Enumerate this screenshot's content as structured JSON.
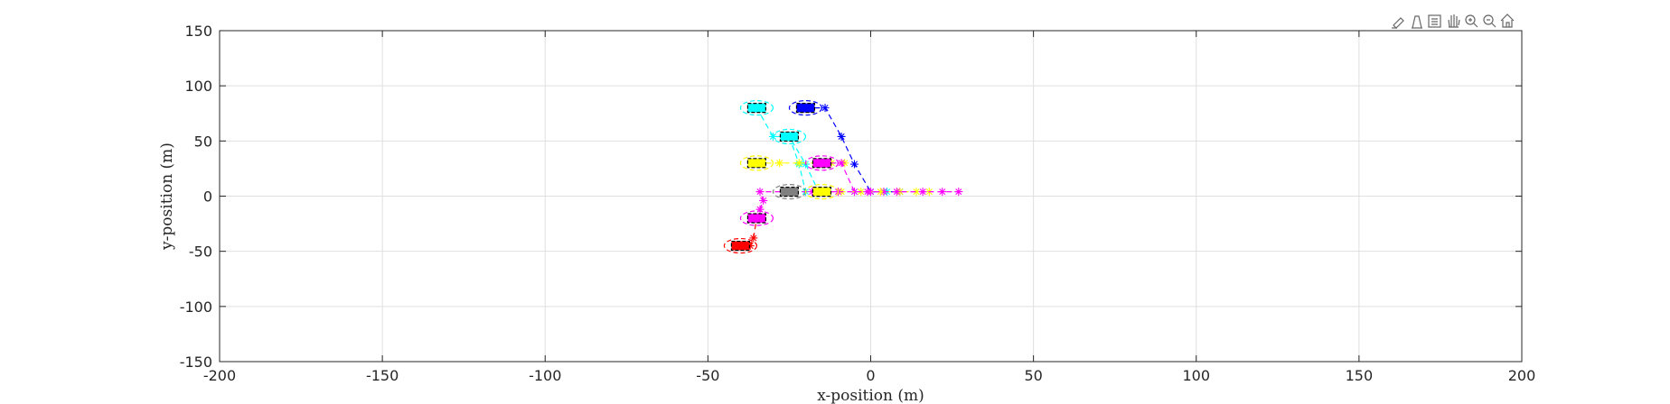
{
  "toolbar": {
    "icons": [
      "brush-icon",
      "data-tip-icon",
      "legend-icon",
      "pan-icon",
      "zoom-in-icon",
      "zoom-out-icon",
      "home-icon"
    ]
  },
  "chart_data": {
    "type": "scatter",
    "xlabel": "x-position (m)",
    "ylabel": "y-position (m)",
    "xlim": [
      -200,
      200
    ],
    "ylim": [
      -150,
      150
    ],
    "xticks": [
      -200,
      -150,
      -100,
      -50,
      0,
      50,
      100,
      150,
      200
    ],
    "yticks": [
      -150,
      -100,
      -50,
      0,
      50,
      100,
      150
    ],
    "xtick_labels": [
      "-200",
      "-150",
      "-100",
      "-50",
      "0",
      "50",
      "100",
      "150",
      "200"
    ],
    "ytick_labels": [
      "-150",
      "-100",
      "-50",
      "0",
      "50",
      "100",
      "150"
    ],
    "grid": true,
    "vehicles": [
      {
        "color": "#0000ff",
        "x": -20,
        "y": 80
      },
      {
        "color": "#00ffff",
        "x": -35,
        "y": 80
      },
      {
        "color": "#00ffff",
        "x": -25,
        "y": 54
      },
      {
        "color": "#ffff00",
        "x": -35,
        "y": 30
      },
      {
        "color": "#ff00ff",
        "x": -15,
        "y": 30
      },
      {
        "color": "#808080",
        "x": -25,
        "y": 4
      },
      {
        "color": "#ffff00",
        "x": -15,
        "y": 4
      },
      {
        "color": "#ff00ff",
        "x": -35,
        "y": -20
      },
      {
        "color": "#ff0000",
        "x": -40,
        "y": -45
      }
    ],
    "trajectories": [
      {
        "color": "#0000ff",
        "points": [
          [
            -20,
            80
          ],
          [
            -14,
            80
          ],
          [
            -9,
            54
          ],
          [
            -5,
            29
          ],
          [
            0,
            4
          ],
          [
            9,
            4
          ]
        ]
      },
      {
        "color": "#00ffff",
        "points": [
          [
            -35,
            80
          ],
          [
            -30,
            54
          ],
          [
            -25,
            54
          ],
          [
            -20,
            29
          ],
          [
            -16,
            4
          ]
        ]
      },
      {
        "color": "#00ffff",
        "points": [
          [
            -25,
            54
          ],
          [
            -22,
            29
          ],
          [
            -20,
            4
          ],
          [
            -5,
            4
          ],
          [
            5,
            4
          ]
        ]
      },
      {
        "color": "#ffff00",
        "points": [
          [
            -35,
            30
          ],
          [
            -28,
            30
          ],
          [
            -22,
            30
          ],
          [
            -17,
            30
          ],
          [
            -12,
            30
          ],
          [
            -8,
            30
          ]
        ]
      },
      {
        "color": "#ff00ff",
        "points": [
          [
            -15,
            30
          ],
          [
            -9,
            30
          ],
          [
            -5,
            4
          ],
          [
            0,
            4
          ],
          [
            4,
            4
          ]
        ]
      },
      {
        "color": "#ffff00",
        "points": [
          [
            -15,
            4
          ],
          [
            -9,
            4
          ],
          [
            -3,
            4
          ],
          [
            3,
            4
          ],
          [
            9,
            4
          ],
          [
            14,
            4
          ],
          [
            18,
            4
          ]
        ]
      },
      {
        "color": "#ff00ff",
        "points": [
          [
            -35,
            4
          ],
          [
            -26,
            4
          ],
          [
            -18,
            4
          ],
          [
            -10,
            4
          ],
          [
            -1,
            4
          ],
          [
            8,
            4
          ],
          [
            16,
            4
          ],
          [
            22,
            4
          ],
          [
            27,
            4
          ]
        ]
      },
      {
        "color": "#ff00ff",
        "points": [
          [
            -35,
            -20
          ],
          [
            -34,
            -12
          ],
          [
            -33,
            -4
          ],
          [
            -34,
            4
          ]
        ]
      },
      {
        "color": "#ff0000",
        "points": [
          [
            -40,
            -45
          ],
          [
            -37,
            -45
          ],
          [
            -36,
            -38
          ],
          [
            -35,
            -20
          ]
        ]
      }
    ]
  }
}
